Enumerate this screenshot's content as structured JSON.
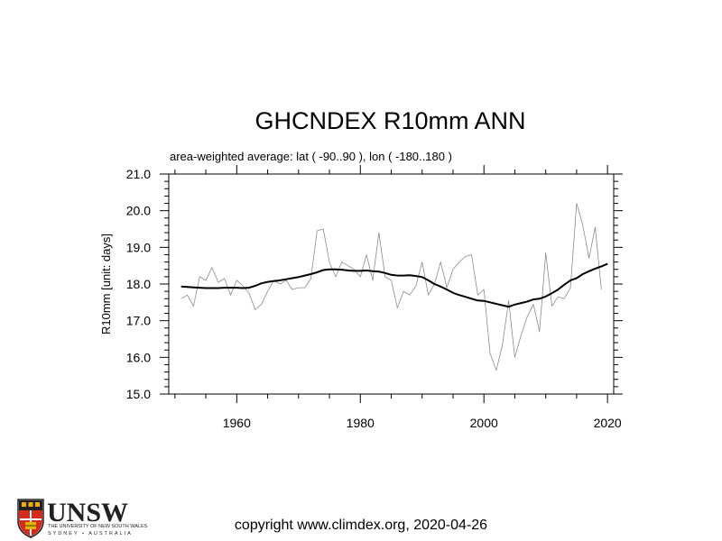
{
  "title": "GHCNDEX R10mm ANN",
  "subtitle": "area-weighted average: lat ( -90..90 ), lon ( -180..180 )",
  "copyright": "copyright www.climdex.org, 2020-04-26",
  "logo": {
    "word": "UNSW",
    "line1": "THE UNIVERSITY OF NEW SOUTH WALES",
    "line2": "SYDNEY • AUSTRALIA"
  },
  "chart_data": {
    "type": "line",
    "title": "GHCNDEX R10mm ANN",
    "subtitle": "area-weighted average: lat ( -90..90 ), lon ( -180..180 )",
    "xlabel": "",
    "ylabel": "R10mm [unit: days]",
    "xlim": [
      1949,
      2021
    ],
    "ylim": [
      15.0,
      21.0
    ],
    "xticks": [
      1960,
      1980,
      2000,
      2020
    ],
    "yticks": [
      15.0,
      16.0,
      17.0,
      18.0,
      19.0,
      20.0,
      21.0
    ],
    "ytick_labels": [
      "15.0",
      "16.0",
      "17.0",
      "18.0",
      "19.0",
      "20.0",
      "21.0"
    ],
    "grid": false,
    "legend": "none",
    "series": [
      {
        "style": "thin-grey",
        "color": "#8c8c8c",
        "x": [
          1951,
          1952,
          1953,
          1954,
          1955,
          1956,
          1957,
          1958,
          1959,
          1960,
          1961,
          1962,
          1963,
          1964,
          1965,
          1966,
          1967,
          1968,
          1969,
          1970,
          1971,
          1972,
          1973,
          1974,
          1975,
          1976,
          1977,
          1978,
          1979,
          1980,
          1981,
          1982,
          1983,
          1984,
          1985,
          1986,
          1987,
          1988,
          1989,
          1990,
          1991,
          1992,
          1993,
          1994,
          1995,
          1996,
          1997,
          1998,
          1999,
          2000,
          2001,
          2002,
          2003,
          2004,
          2005,
          2006,
          2007,
          2008,
          2009,
          2010,
          2011,
          2012,
          2013,
          2014,
          2015,
          2016,
          2017,
          2018,
          2019
        ],
        "y": [
          17.6,
          17.7,
          17.4,
          18.2,
          18.1,
          18.45,
          18.05,
          18.15,
          17.7,
          18.1,
          17.95,
          17.75,
          17.3,
          17.45,
          17.8,
          18.1,
          18.0,
          18.1,
          17.85,
          17.9,
          17.9,
          18.15,
          19.45,
          19.5,
          18.6,
          18.2,
          18.6,
          18.5,
          18.4,
          18.2,
          18.8,
          18.1,
          19.4,
          18.2,
          18.1,
          17.35,
          17.8,
          17.7,
          17.95,
          18.6,
          17.7,
          18.0,
          18.6,
          17.9,
          18.4,
          18.6,
          18.75,
          18.8,
          17.7,
          17.85,
          16.1,
          15.65,
          16.35,
          17.55,
          16.0,
          16.6,
          17.1,
          17.45,
          16.7,
          18.85,
          17.4,
          17.65,
          17.6,
          17.9,
          20.2,
          19.6,
          18.7,
          19.55,
          17.85
        ]
      },
      {
        "style": "thick-black",
        "color": "#000000",
        "x": [
          1951,
          1952,
          1953,
          1954,
          1955,
          1956,
          1957,
          1958,
          1959,
          1960,
          1961,
          1962,
          1963,
          1964,
          1965,
          1966,
          1967,
          1968,
          1969,
          1970,
          1971,
          1972,
          1973,
          1974,
          1975,
          1976,
          1977,
          1978,
          1979,
          1980,
          1981,
          1982,
          1983,
          1984,
          1985,
          1986,
          1987,
          1988,
          1989,
          1990,
          1991,
          1992,
          1993,
          1994,
          1995,
          1996,
          1997,
          1998,
          1999,
          2000,
          2001,
          2002,
          2003,
          2004,
          2005,
          2006,
          2007,
          2008,
          2009,
          2010,
          2011,
          2012,
          2013,
          2014,
          2015,
          2016,
          2017,
          2018,
          2019,
          2020
        ],
        "y": [
          17.93,
          17.92,
          17.91,
          17.9,
          17.89,
          17.89,
          17.89,
          17.9,
          17.9,
          17.9,
          17.89,
          17.9,
          17.95,
          18.02,
          18.06,
          18.08,
          18.1,
          18.13,
          18.16,
          18.19,
          18.23,
          18.27,
          18.32,
          18.38,
          18.4,
          18.4,
          18.39,
          18.37,
          18.36,
          18.36,
          18.37,
          18.35,
          18.34,
          18.3,
          18.25,
          18.23,
          18.23,
          18.24,
          18.22,
          18.19,
          18.1,
          18.0,
          17.93,
          17.85,
          17.76,
          17.7,
          17.65,
          17.6,
          17.55,
          17.54,
          17.5,
          17.46,
          17.42,
          17.38,
          17.44,
          17.48,
          17.52,
          17.58,
          17.6,
          17.66,
          17.75,
          17.85,
          17.98,
          18.1,
          18.16,
          18.27,
          18.35,
          18.42,
          18.48,
          18.55
        ]
      }
    ]
  }
}
